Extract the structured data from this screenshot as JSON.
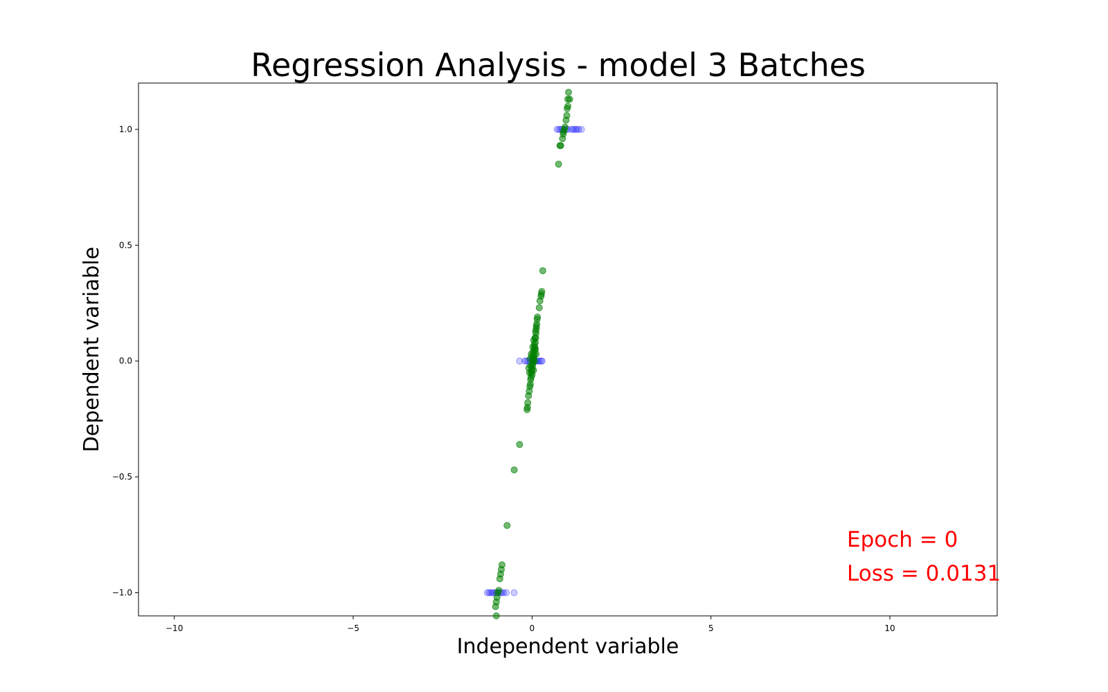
{
  "chart_data": {
    "type": "scatter",
    "title": "Regression Analysis - model 3 Batches",
    "xlabel": "Independent variable",
    "ylabel": "Dependent variable",
    "xlim": [
      -11,
      13
    ],
    "ylim": [
      -1.1,
      1.2
    ],
    "x_ticks": [
      -10,
      -5,
      0,
      5,
      10
    ],
    "x_tick_labels": [
      "−10",
      "−5",
      "0",
      "5",
      "10"
    ],
    "y_ticks": [
      -1.0,
      -0.5,
      0.0,
      0.5,
      1.0
    ],
    "y_tick_labels": [
      "−1.0",
      "−0.5",
      "0.0",
      "0.5",
      "1.0"
    ],
    "grid": false,
    "annotations": [
      "Epoch = 0",
      "Loss = 0.0131"
    ],
    "annotation_color": "#ff0000",
    "series": [
      {
        "color": "#0000ff",
        "opacity": 0.2,
        "points": [
          [
            -1.25,
            -1.0
          ],
          [
            -1.2,
            -1.0
          ],
          [
            -1.15,
            -1.0
          ],
          [
            -1.1,
            -1.0
          ],
          [
            -1.05,
            -1.0
          ],
          [
            -1.0,
            -1.0
          ],
          [
            -0.95,
            -1.0
          ],
          [
            -0.9,
            -1.0
          ],
          [
            -0.85,
            -1.0
          ],
          [
            -0.8,
            -1.0
          ],
          [
            -0.72,
            -1.0
          ],
          [
            -0.5,
            -1.0
          ],
          [
            -0.35,
            0.0
          ],
          [
            -0.2,
            0.0
          ],
          [
            -0.15,
            0.0
          ],
          [
            -0.1,
            0.0
          ],
          [
            -0.05,
            0.0
          ],
          [
            0.0,
            0.0
          ],
          [
            0.05,
            0.0
          ],
          [
            0.1,
            0.0
          ],
          [
            0.15,
            0.0
          ],
          [
            0.2,
            0.0
          ],
          [
            0.25,
            0.0
          ],
          [
            0.28,
            0.0
          ],
          [
            0.7,
            1.0
          ],
          [
            0.75,
            1.0
          ],
          [
            0.8,
            1.0
          ],
          [
            0.85,
            1.0
          ],
          [
            0.9,
            1.0
          ],
          [
            0.95,
            1.0
          ],
          [
            1.0,
            1.0
          ],
          [
            1.1,
            1.0
          ],
          [
            1.15,
            1.0
          ],
          [
            1.2,
            1.0
          ],
          [
            1.25,
            1.0
          ],
          [
            1.3,
            1.0
          ],
          [
            1.38,
            1.0
          ]
        ]
      },
      {
        "color": "#008000",
        "opacity": 0.55,
        "points": [
          [
            -1.0,
            -1.1
          ],
          [
            -1.02,
            -1.06
          ],
          [
            -1.0,
            -1.04
          ],
          [
            -0.98,
            -1.02
          ],
          [
            -0.96,
            -1.0
          ],
          [
            -0.93,
            -0.99
          ],
          [
            -0.9,
            -0.94
          ],
          [
            -0.88,
            -0.92
          ],
          [
            -0.86,
            -0.9
          ],
          [
            -0.84,
            -0.88
          ],
          [
            -0.7,
            -0.71
          ],
          [
            -0.5,
            -0.47
          ],
          [
            -0.35,
            -0.36
          ],
          [
            -0.14,
            -0.21
          ],
          [
            -0.13,
            -0.2
          ],
          [
            -0.12,
            -0.18
          ],
          [
            -0.1,
            -0.15
          ],
          [
            -0.08,
            -0.13
          ],
          [
            -0.06,
            -0.11
          ],
          [
            -0.05,
            -0.1
          ],
          [
            -0.04,
            -0.08
          ],
          [
            -0.03,
            -0.07
          ],
          [
            -0.02,
            -0.05
          ],
          [
            -0.01,
            -0.04
          ],
          [
            0.0,
            -0.03
          ],
          [
            0.01,
            -0.02
          ],
          [
            0.02,
            -0.01
          ],
          [
            0.03,
            0.0
          ],
          [
            0.04,
            0.01
          ],
          [
            0.05,
            0.02
          ],
          [
            0.06,
            0.03
          ],
          [
            0.07,
            0.05
          ],
          [
            0.08,
            0.06
          ],
          [
            0.09,
            0.08
          ],
          [
            0.1,
            0.1
          ],
          [
            0.11,
            0.12
          ],
          [
            0.12,
            0.14
          ],
          [
            0.13,
            0.16
          ],
          [
            0.14,
            0.18
          ],
          [
            0.15,
            0.19
          ],
          [
            0.2,
            0.23
          ],
          [
            0.22,
            0.26
          ],
          [
            0.25,
            0.28
          ],
          [
            0.26,
            0.29
          ],
          [
            0.27,
            0.3
          ],
          [
            0.3,
            0.39
          ],
          [
            -0.07,
            -0.05
          ],
          [
            -0.04,
            -0.02
          ],
          [
            0.0,
            0.02
          ],
          [
            0.03,
            0.04
          ],
          [
            0.06,
            0.07
          ],
          [
            0.08,
            0.1
          ],
          [
            0.1,
            0.13
          ],
          [
            0.12,
            0.15
          ],
          [
            0.05,
            0.09
          ],
          [
            0.02,
            0.06
          ],
          [
            -0.02,
            0.03
          ],
          [
            0.04,
            -0.04
          ],
          [
            -0.09,
            -0.03
          ],
          [
            0.07,
            0.0
          ],
          [
            0.11,
            0.03
          ],
          [
            0.09,
            0.05
          ],
          [
            -0.05,
            0.01
          ],
          [
            0.0,
            -0.06
          ],
          [
            0.74,
            0.85
          ],
          [
            0.78,
            0.93
          ],
          [
            0.8,
            0.93
          ],
          [
            0.85,
            0.96
          ],
          [
            0.87,
            0.98
          ],
          [
            0.9,
            1.0
          ],
          [
            0.88,
            0.99
          ],
          [
            0.92,
            1.01
          ],
          [
            0.95,
            1.04
          ],
          [
            0.97,
            1.06
          ],
          [
            0.98,
            1.09
          ],
          [
            1.0,
            1.1
          ],
          [
            1.0,
            1.13
          ],
          [
            1.05,
            1.13
          ],
          [
            1.02,
            1.16
          ]
        ]
      }
    ]
  }
}
